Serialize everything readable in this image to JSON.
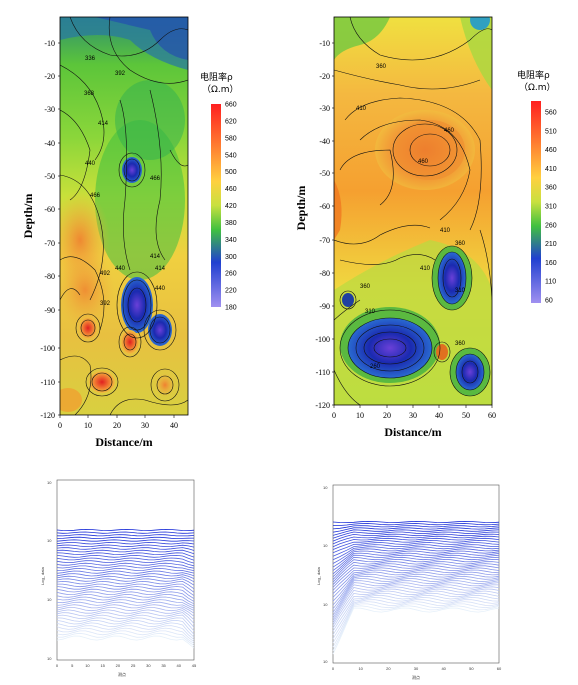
{
  "panels": [
    {
      "x_label": "Distance/m",
      "y_label": "Depth/m",
      "x_ticks": [
        "0",
        "10",
        "20",
        "30",
        "40"
      ],
      "y_ticks": [
        "-10",
        "-20",
        "-30",
        "-40",
        "-50",
        "-60",
        "-70",
        "-80",
        "-90",
        "-100",
        "-110",
        "-120"
      ],
      "colorbar_title": "电阻率ρ",
      "colorbar_unit": "（Ω.m）",
      "colorbar_ticks": [
        "660",
        "620",
        "580",
        "540",
        "500",
        "460",
        "420",
        "380",
        "340",
        "300",
        "260",
        "220",
        "180"
      ],
      "contour_labels": [
        "336",
        "392",
        "368",
        "414",
        "440",
        "466",
        "466",
        "492",
        "440",
        "414",
        "392",
        "414",
        "440"
      ]
    },
    {
      "x_label": "Distance/m",
      "y_label": "Depth/m",
      "x_ticks": [
        "0",
        "10",
        "20",
        "30",
        "40",
        "50",
        "60"
      ],
      "y_ticks": [
        "-10",
        "-20",
        "-30",
        "-40",
        "-50",
        "-60",
        "-70",
        "-80",
        "-90",
        "-100",
        "-110",
        "-120"
      ],
      "colorbar_title": "电阻率ρ",
      "colorbar_unit": "（Ω.m）",
      "colorbar_ticks": [
        "560",
        "510",
        "460",
        "410",
        "360",
        "310",
        "260",
        "210",
        "160",
        "110",
        "60"
      ],
      "contour_labels": [
        "360",
        "410",
        "460",
        "460",
        "410",
        "360",
        "360",
        "310",
        "310",
        "260",
        "360",
        "410"
      ]
    }
  ],
  "lower_panels": [
    {
      "x_ticks": [
        "0",
        "5",
        "10",
        "15",
        "20",
        "25",
        "30",
        "35",
        "40",
        "45"
      ],
      "x_label": "测点",
      "y_label": "Log_ data"
    },
    {
      "x_ticks": [
        "0",
        "10",
        "20",
        "30",
        "40",
        "50",
        "60"
      ],
      "x_label": "测点",
      "y_label": "Log_ data"
    }
  ],
  "chart_data": [
    {
      "type": "heatmap",
      "x_range": [
        0,
        45
      ],
      "y_range": [
        -120,
        -3
      ],
      "value_range": [
        180,
        660
      ],
      "anomalies": [
        {
          "label": "low",
          "x": 25,
          "y": -48,
          "value": 300
        },
        {
          "label": "low",
          "x": 25,
          "y": -95,
          "value": 220
        },
        {
          "label": "low",
          "x": 36,
          "y": -95,
          "value": 240
        },
        {
          "label": "high",
          "x": 10,
          "y": -95,
          "value": 540
        },
        {
          "label": "high",
          "x": 15,
          "y": -110,
          "value": 560
        },
        {
          "label": "high",
          "x": 24,
          "y": -98,
          "value": 580
        },
        {
          "label": "high",
          "x": 5,
          "y": -60,
          "value": 480
        }
      ]
    },
    {
      "type": "heatmap",
      "x_range": [
        0,
        60
      ],
      "y_range": [
        -120,
        -3
      ],
      "value_range": [
        60,
        560
      ],
      "anomalies": [
        {
          "label": "high",
          "x": 35,
          "y": -45,
          "value": 480
        },
        {
          "label": "low",
          "x": 22,
          "y": -102,
          "value": 80
        },
        {
          "label": "low",
          "x": 45,
          "y": -82,
          "value": 90
        },
        {
          "label": "low",
          "x": 53,
          "y": -110,
          "value": 120
        }
      ]
    }
  ]
}
